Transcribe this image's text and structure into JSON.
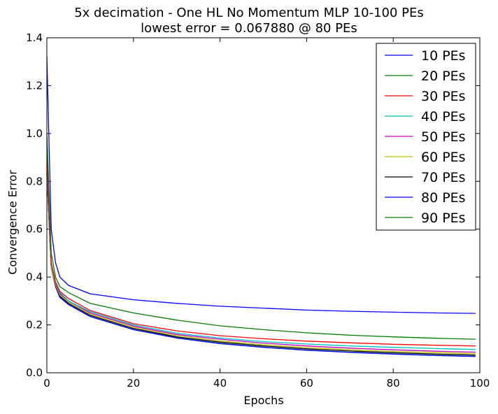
{
  "chart_data": {
    "type": "line",
    "title": "5x decimation - One HL No Momentum MLP 10-100 PEs",
    "subtitle": "lowest error = 0.067880 @ 80 PEs",
    "xlabel": "Epochs",
    "ylabel": "Convergence Error",
    "xlim": [
      0,
      100
    ],
    "ylim": [
      0,
      1.4
    ],
    "x_ticks": [
      "0",
      "20",
      "40",
      "60",
      "80",
      "100"
    ],
    "y_ticks": [
      "0.0",
      "0.2",
      "0.4",
      "0.6",
      "0.8",
      "1.0",
      "1.2",
      "1.4"
    ],
    "grid": false,
    "legend_position": "top-right",
    "x": [
      0,
      1,
      2,
      3,
      5,
      10,
      20,
      30,
      40,
      50,
      60,
      70,
      80,
      90,
      99
    ],
    "series": [
      {
        "name": "10 PEs",
        "color": "#0000ff",
        "values": [
          1.32,
          0.6,
          0.46,
          0.4,
          0.365,
          0.33,
          0.305,
          0.29,
          0.278,
          0.27,
          0.262,
          0.257,
          0.253,
          0.25,
          0.248
        ]
      },
      {
        "name": "20 PEs",
        "color": "#008000",
        "values": [
          1.0,
          0.5,
          0.4,
          0.36,
          0.335,
          0.29,
          0.25,
          0.22,
          0.196,
          0.18,
          0.167,
          0.157,
          0.15,
          0.144,
          0.14
        ]
      },
      {
        "name": "30 PEs",
        "color": "#ff0000",
        "values": [
          0.9,
          0.46,
          0.38,
          0.34,
          0.31,
          0.26,
          0.205,
          0.175,
          0.155,
          0.142,
          0.132,
          0.125,
          0.119,
          0.115,
          0.112
        ]
      },
      {
        "name": "40 PEs",
        "color": "#00bfbf",
        "values": [
          0.88,
          0.45,
          0.375,
          0.335,
          0.3,
          0.255,
          0.2,
          0.165,
          0.145,
          0.13,
          0.12,
          0.112,
          0.106,
          0.101,
          0.097
        ]
      },
      {
        "name": "50 PEs",
        "color": "#bf00bf",
        "values": [
          0.86,
          0.45,
          0.37,
          0.33,
          0.3,
          0.25,
          0.195,
          0.16,
          0.14,
          0.124,
          0.112,
          0.103,
          0.096,
          0.09,
          0.086
        ]
      },
      {
        "name": "60 PEs",
        "color": "#bfbf00",
        "values": [
          0.85,
          0.44,
          0.365,
          0.325,
          0.295,
          0.245,
          0.19,
          0.155,
          0.133,
          0.117,
          0.105,
          0.096,
          0.089,
          0.084,
          0.08
        ]
      },
      {
        "name": "70 PEs",
        "color": "#000000",
        "values": [
          0.84,
          0.44,
          0.36,
          0.32,
          0.29,
          0.24,
          0.185,
          0.15,
          0.128,
          0.112,
          0.1,
          0.091,
          0.084,
          0.078,
          0.074
        ]
      },
      {
        "name": "80 PEs",
        "color": "#0000ff",
        "values": [
          0.83,
          0.44,
          0.36,
          0.315,
          0.285,
          0.235,
          0.18,
          0.145,
          0.122,
          0.106,
          0.094,
          0.085,
          0.078,
          0.072,
          0.068
        ]
      },
      {
        "name": "90 PEs",
        "color": "#008000",
        "values": [
          0.83,
          0.44,
          0.36,
          0.315,
          0.285,
          0.235,
          0.18,
          0.146,
          0.123,
          0.107,
          0.095,
          0.086,
          0.079,
          0.073,
          0.069
        ]
      }
    ]
  }
}
